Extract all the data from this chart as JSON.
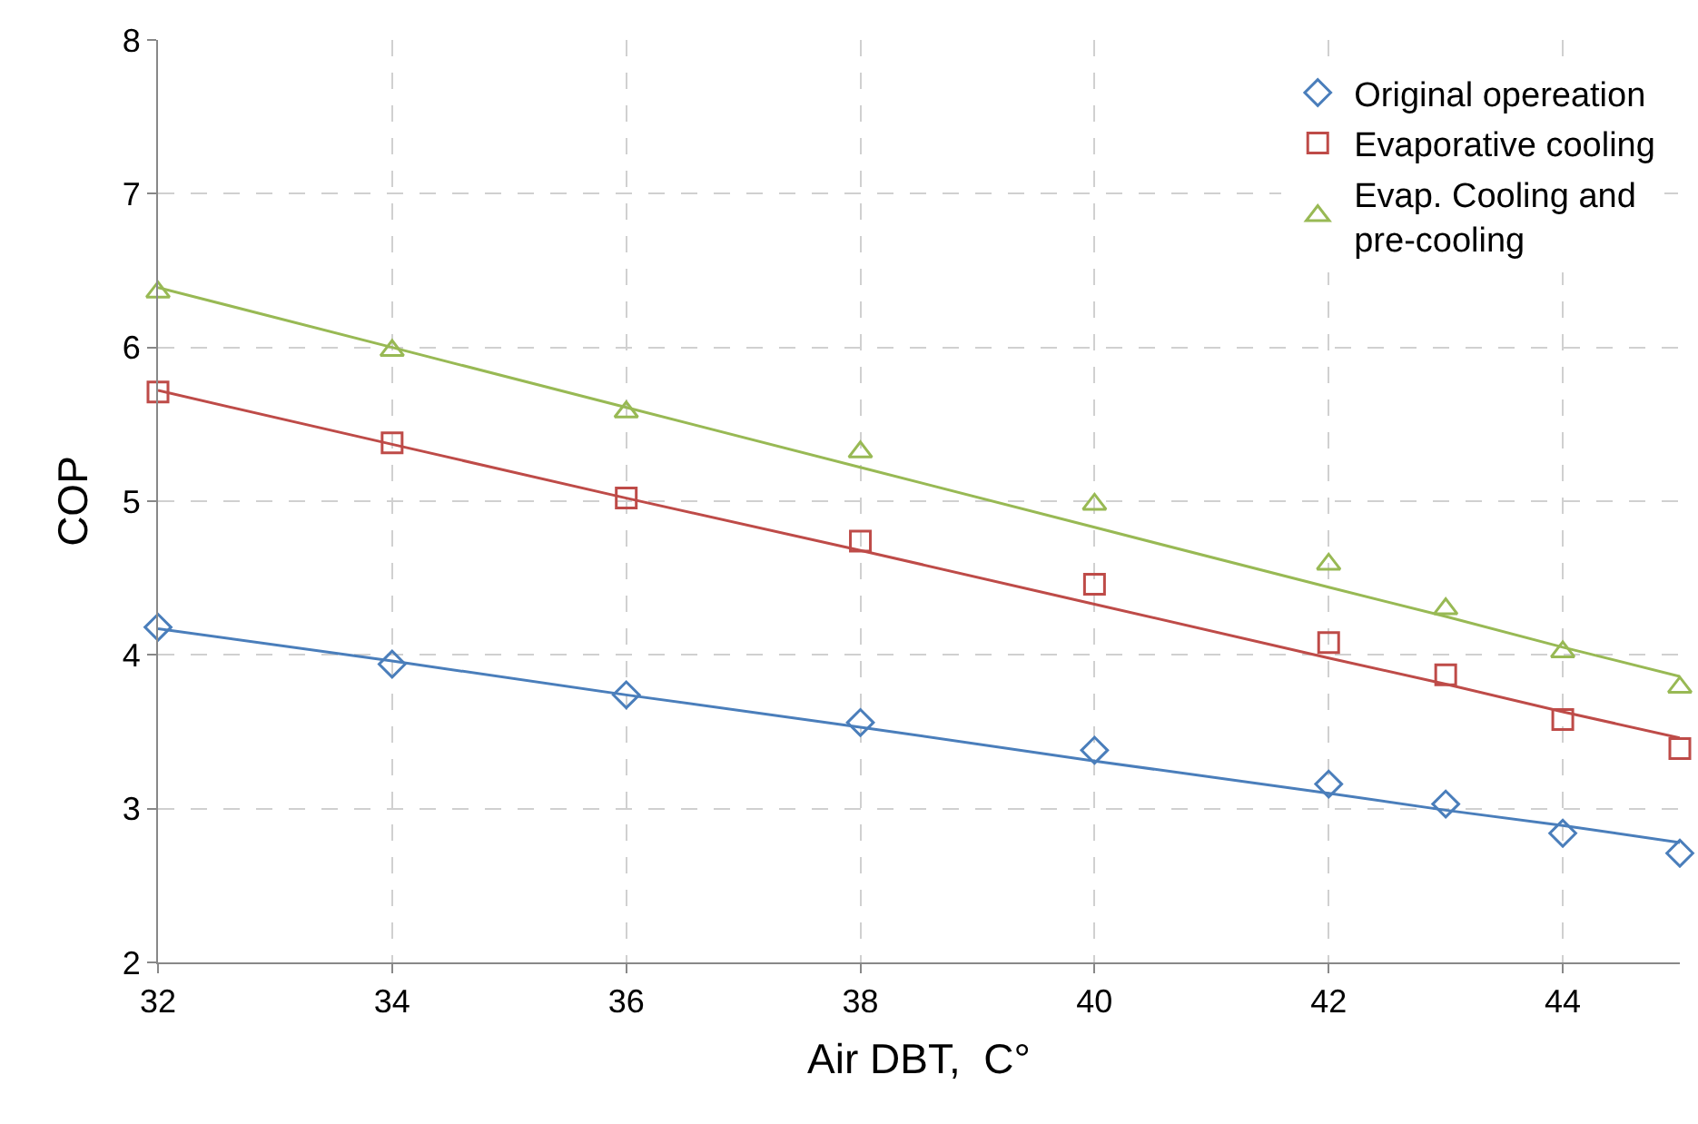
{
  "chart_data": {
    "type": "scatter",
    "xlabel": "Air DBT,  C°",
    "ylabel": "COP",
    "x": [
      32,
      34,
      36,
      38,
      40,
      42,
      43,
      44,
      45
    ],
    "series": [
      {
        "name": "Original opereation",
        "color": "#4a7ebb",
        "marker": "diamond",
        "values": [
          4.18,
          3.94,
          3.74,
          3.56,
          3.38,
          3.16,
          3.03,
          2.84,
          2.71
        ]
      },
      {
        "name": "Evaporative cooling",
        "color": "#be4b48",
        "marker": "square",
        "values": [
          5.71,
          5.38,
          5.02,
          4.74,
          4.46,
          4.08,
          3.87,
          3.58,
          3.39
        ]
      },
      {
        "name": "Evap. Cooling and pre-cooling",
        "color": "#98b954",
        "marker": "triangle",
        "values": [
          6.36,
          5.98,
          5.58,
          5.32,
          4.98,
          4.59,
          4.3,
          4.02,
          3.79
        ]
      },
      {
        "type": "line",
        "color": "#4a7ebb",
        "marker": "none",
        "values": [
          4.17,
          3.96,
          3.74,
          3.53,
          3.31,
          3.1,
          2.99,
          2.89,
          2.78
        ]
      },
      {
        "type": "line",
        "color": "#be4b48",
        "marker": "none",
        "values": [
          5.72,
          5.37,
          5.02,
          4.68,
          4.33,
          3.98,
          3.81,
          3.63,
          3.46
        ]
      },
      {
        "type": "line",
        "color": "#98b954",
        "marker": "none",
        "values": [
          6.39,
          6.0,
          5.61,
          5.22,
          4.83,
          4.44,
          4.25,
          4.05,
          3.86
        ]
      }
    ],
    "xlim": [
      32,
      45
    ],
    "xticks": [
      32,
      34,
      36,
      38,
      40,
      42,
      44
    ],
    "ylim": [
      2,
      8
    ],
    "yticks": [
      2,
      3,
      4,
      5,
      6,
      7,
      8
    ],
    "grid": true,
    "legend": "top right",
    "line_style": "solid"
  }
}
